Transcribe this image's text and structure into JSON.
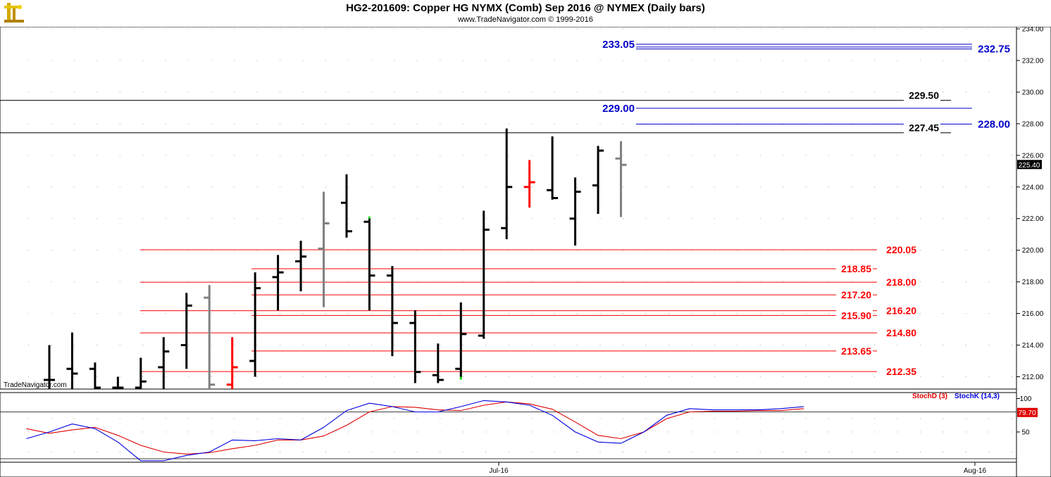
{
  "header": {
    "title": "HG2-201609:  Copper HG NYMX (Comb) Sep 2016 @ NYMEX  (Daily bars)",
    "copyright": "www.TradeNavigator.com © 1999-2016",
    "watermark": "TradeNavigator.com"
  },
  "colors": {
    "bar_black": "#000000",
    "bar_gray": "#808080",
    "bar_red": "#ff0000",
    "support_red": "#ff0000",
    "target_blue": "#0000c8",
    "stochD": "#e00000",
    "stochK": "#0000e0",
    "signal_green": "#00e000"
  },
  "chart_data": [
    {
      "type": "ohlc",
      "title": "HG2-201609:  Copper HG NYMX (Comb) Sep 2016 @ NYMEX  (Daily bars)",
      "ylim": [
        211,
        234
      ],
      "y_ticks": [
        "212.00",
        "214.00",
        "216.00",
        "218.00",
        "220.00",
        "222.00",
        "224.00",
        "226.00",
        "228.00",
        "230.00",
        "232.00",
        "234.00"
      ],
      "x_labels": [
        "Jul-16",
        "Aug-16"
      ],
      "last_price": "225.40",
      "bars": [
        {
          "o": 211.8,
          "h": 214.0,
          "l": 211.0,
          "c": 211.8,
          "color": "black"
        },
        {
          "o": 212.5,
          "h": 214.8,
          "l": 211.0,
          "c": 212.2,
          "color": "black"
        },
        {
          "o": 212.5,
          "h": 212.9,
          "l": 211.0,
          "c": 211.0,
          "color": "black"
        },
        {
          "o": 211.0,
          "h": 212.0,
          "l": 211.0,
          "c": 211.0,
          "color": "black"
        },
        {
          "o": 211.0,
          "h": 213.2,
          "l": 211.0,
          "c": 211.7,
          "color": "black"
        },
        {
          "o": 212.6,
          "h": 214.5,
          "l": 211.2,
          "c": 213.6,
          "color": "black"
        },
        {
          "o": 214.0,
          "h": 217.3,
          "l": 212.5,
          "c": 216.5,
          "color": "black"
        },
        {
          "o": 217.0,
          "h": 217.8,
          "l": 211.2,
          "c": 211.5,
          "color": "gray"
        },
        {
          "o": 211.5,
          "h": 214.5,
          "l": 211.0,
          "c": 212.6,
          "color": "red"
        },
        {
          "o": 213.0,
          "h": 218.6,
          "l": 212.0,
          "c": 217.6,
          "color": "black"
        },
        {
          "o": 218.3,
          "h": 219.7,
          "l": 216.2,
          "c": 218.6,
          "color": "black"
        },
        {
          "o": 219.3,
          "h": 220.6,
          "l": 217.4,
          "c": 219.6,
          "color": "black"
        },
        {
          "o": 220.1,
          "h": 223.7,
          "l": 216.4,
          "c": 221.7,
          "color": "gray"
        },
        {
          "o": 223.0,
          "h": 224.8,
          "l": 220.8,
          "c": 221.2,
          "color": "black"
        },
        {
          "o": 221.8,
          "h": 222.0,
          "l": 216.2,
          "c": 218.4,
          "color": "black",
          "signal": "top"
        },
        {
          "o": 218.4,
          "h": 219.0,
          "l": 213.3,
          "c": 215.4,
          "color": "black"
        },
        {
          "o": 215.4,
          "h": 216.2,
          "l": 211.6,
          "c": 212.3,
          "color": "black"
        },
        {
          "o": 212.1,
          "h": 214.1,
          "l": 211.6,
          "c": 211.8,
          "color": "black"
        },
        {
          "o": 212.5,
          "h": 216.7,
          "l": 212.0,
          "c": 214.7,
          "color": "black",
          "signal": "bottom"
        },
        {
          "o": 214.6,
          "h": 222.5,
          "l": 214.4,
          "c": 221.3,
          "color": "black"
        },
        {
          "o": 221.4,
          "h": 227.7,
          "l": 220.7,
          "c": 224.0,
          "color": "black"
        },
        {
          "o": 224.0,
          "h": 225.7,
          "l": 222.7,
          "c": 224.3,
          "color": "red"
        },
        {
          "o": 223.8,
          "h": 227.2,
          "l": 223.2,
          "c": 223.3,
          "color": "black"
        },
        {
          "o": 222.0,
          "h": 224.6,
          "l": 220.3,
          "c": 223.7,
          "color": "black"
        },
        {
          "o": 224.1,
          "h": 226.6,
          "l": 222.3,
          "c": 226.3,
          "color": "black"
        },
        {
          "o": 225.8,
          "h": 226.9,
          "l": 222.1,
          "c": 225.4,
          "color": "gray"
        }
      ],
      "levels": [
        {
          "value": 233.05,
          "label": "233.05",
          "color": "blue",
          "label_side": "left"
        },
        {
          "value": 232.75,
          "label": "232.75",
          "color": "blue",
          "label_side": "right"
        },
        {
          "value": 229.5,
          "label": "229.50",
          "color": "black",
          "label_side": "right"
        },
        {
          "value": 229.0,
          "label": "229.00",
          "color": "blue",
          "label_side": "left"
        },
        {
          "value": 228.0,
          "label": "228.00",
          "color": "blue",
          "label_side": "right"
        },
        {
          "value": 227.45,
          "label": "227.45",
          "color": "black",
          "label_side": "right"
        },
        {
          "value": 220.05,
          "label": "220.05",
          "color": "red",
          "label_side": "right"
        },
        {
          "value": 218.85,
          "label": "218.85",
          "color": "red",
          "label_side": "left"
        },
        {
          "value": 218.0,
          "label": "218.00",
          "color": "red",
          "label_side": "right"
        },
        {
          "value": 217.2,
          "label": "217.20",
          "color": "red",
          "label_side": "left"
        },
        {
          "value": 216.2,
          "label": "216.20",
          "color": "red",
          "label_side": "right"
        },
        {
          "value": 215.9,
          "label": "215.90",
          "color": "red",
          "label_side": "left"
        },
        {
          "value": 214.8,
          "label": "214.80",
          "color": "red",
          "label_side": "right"
        },
        {
          "value": 213.65,
          "label": "213.65",
          "color": "red",
          "label_side": "left"
        },
        {
          "value": 212.35,
          "label": "212.35",
          "color": "red",
          "label_side": "right"
        }
      ]
    },
    {
      "type": "line",
      "title": "Stochastic",
      "ylim": [
        0,
        100
      ],
      "y_ticks": [
        "100",
        "50"
      ],
      "reference_line": 80,
      "x": [
        -1,
        0,
        1,
        2,
        3,
        4,
        5,
        6,
        7,
        8,
        9,
        10,
        11,
        12,
        13,
        14,
        15,
        16,
        17,
        18,
        19,
        20,
        21,
        22,
        23,
        24,
        25,
        26,
        27,
        28,
        29,
        30,
        31,
        32,
        33
      ],
      "series": [
        {
          "name": "StochD (3)",
          "color": "#e00000",
          "values": [
            55,
            48,
            53,
            57,
            45,
            30,
            20,
            17,
            19,
            25,
            30,
            38,
            38,
            44,
            60,
            80,
            88,
            87,
            83,
            82,
            90,
            95,
            92,
            84,
            65,
            45,
            40,
            50,
            70,
            80,
            81,
            81,
            82,
            82,
            85
          ]
        },
        {
          "name": "StochK (14,3)",
          "color": "#0000e0",
          "values": [
            40,
            50,
            62,
            55,
            35,
            7,
            7,
            15,
            20,
            38,
            37,
            40,
            38,
            57,
            82,
            93,
            88,
            80,
            80,
            88,
            97,
            95,
            90,
            75,
            50,
            35,
            33,
            50,
            75,
            85,
            83,
            83,
            83,
            85,
            88
          ]
        }
      ],
      "last_value": "79.70"
    }
  ]
}
